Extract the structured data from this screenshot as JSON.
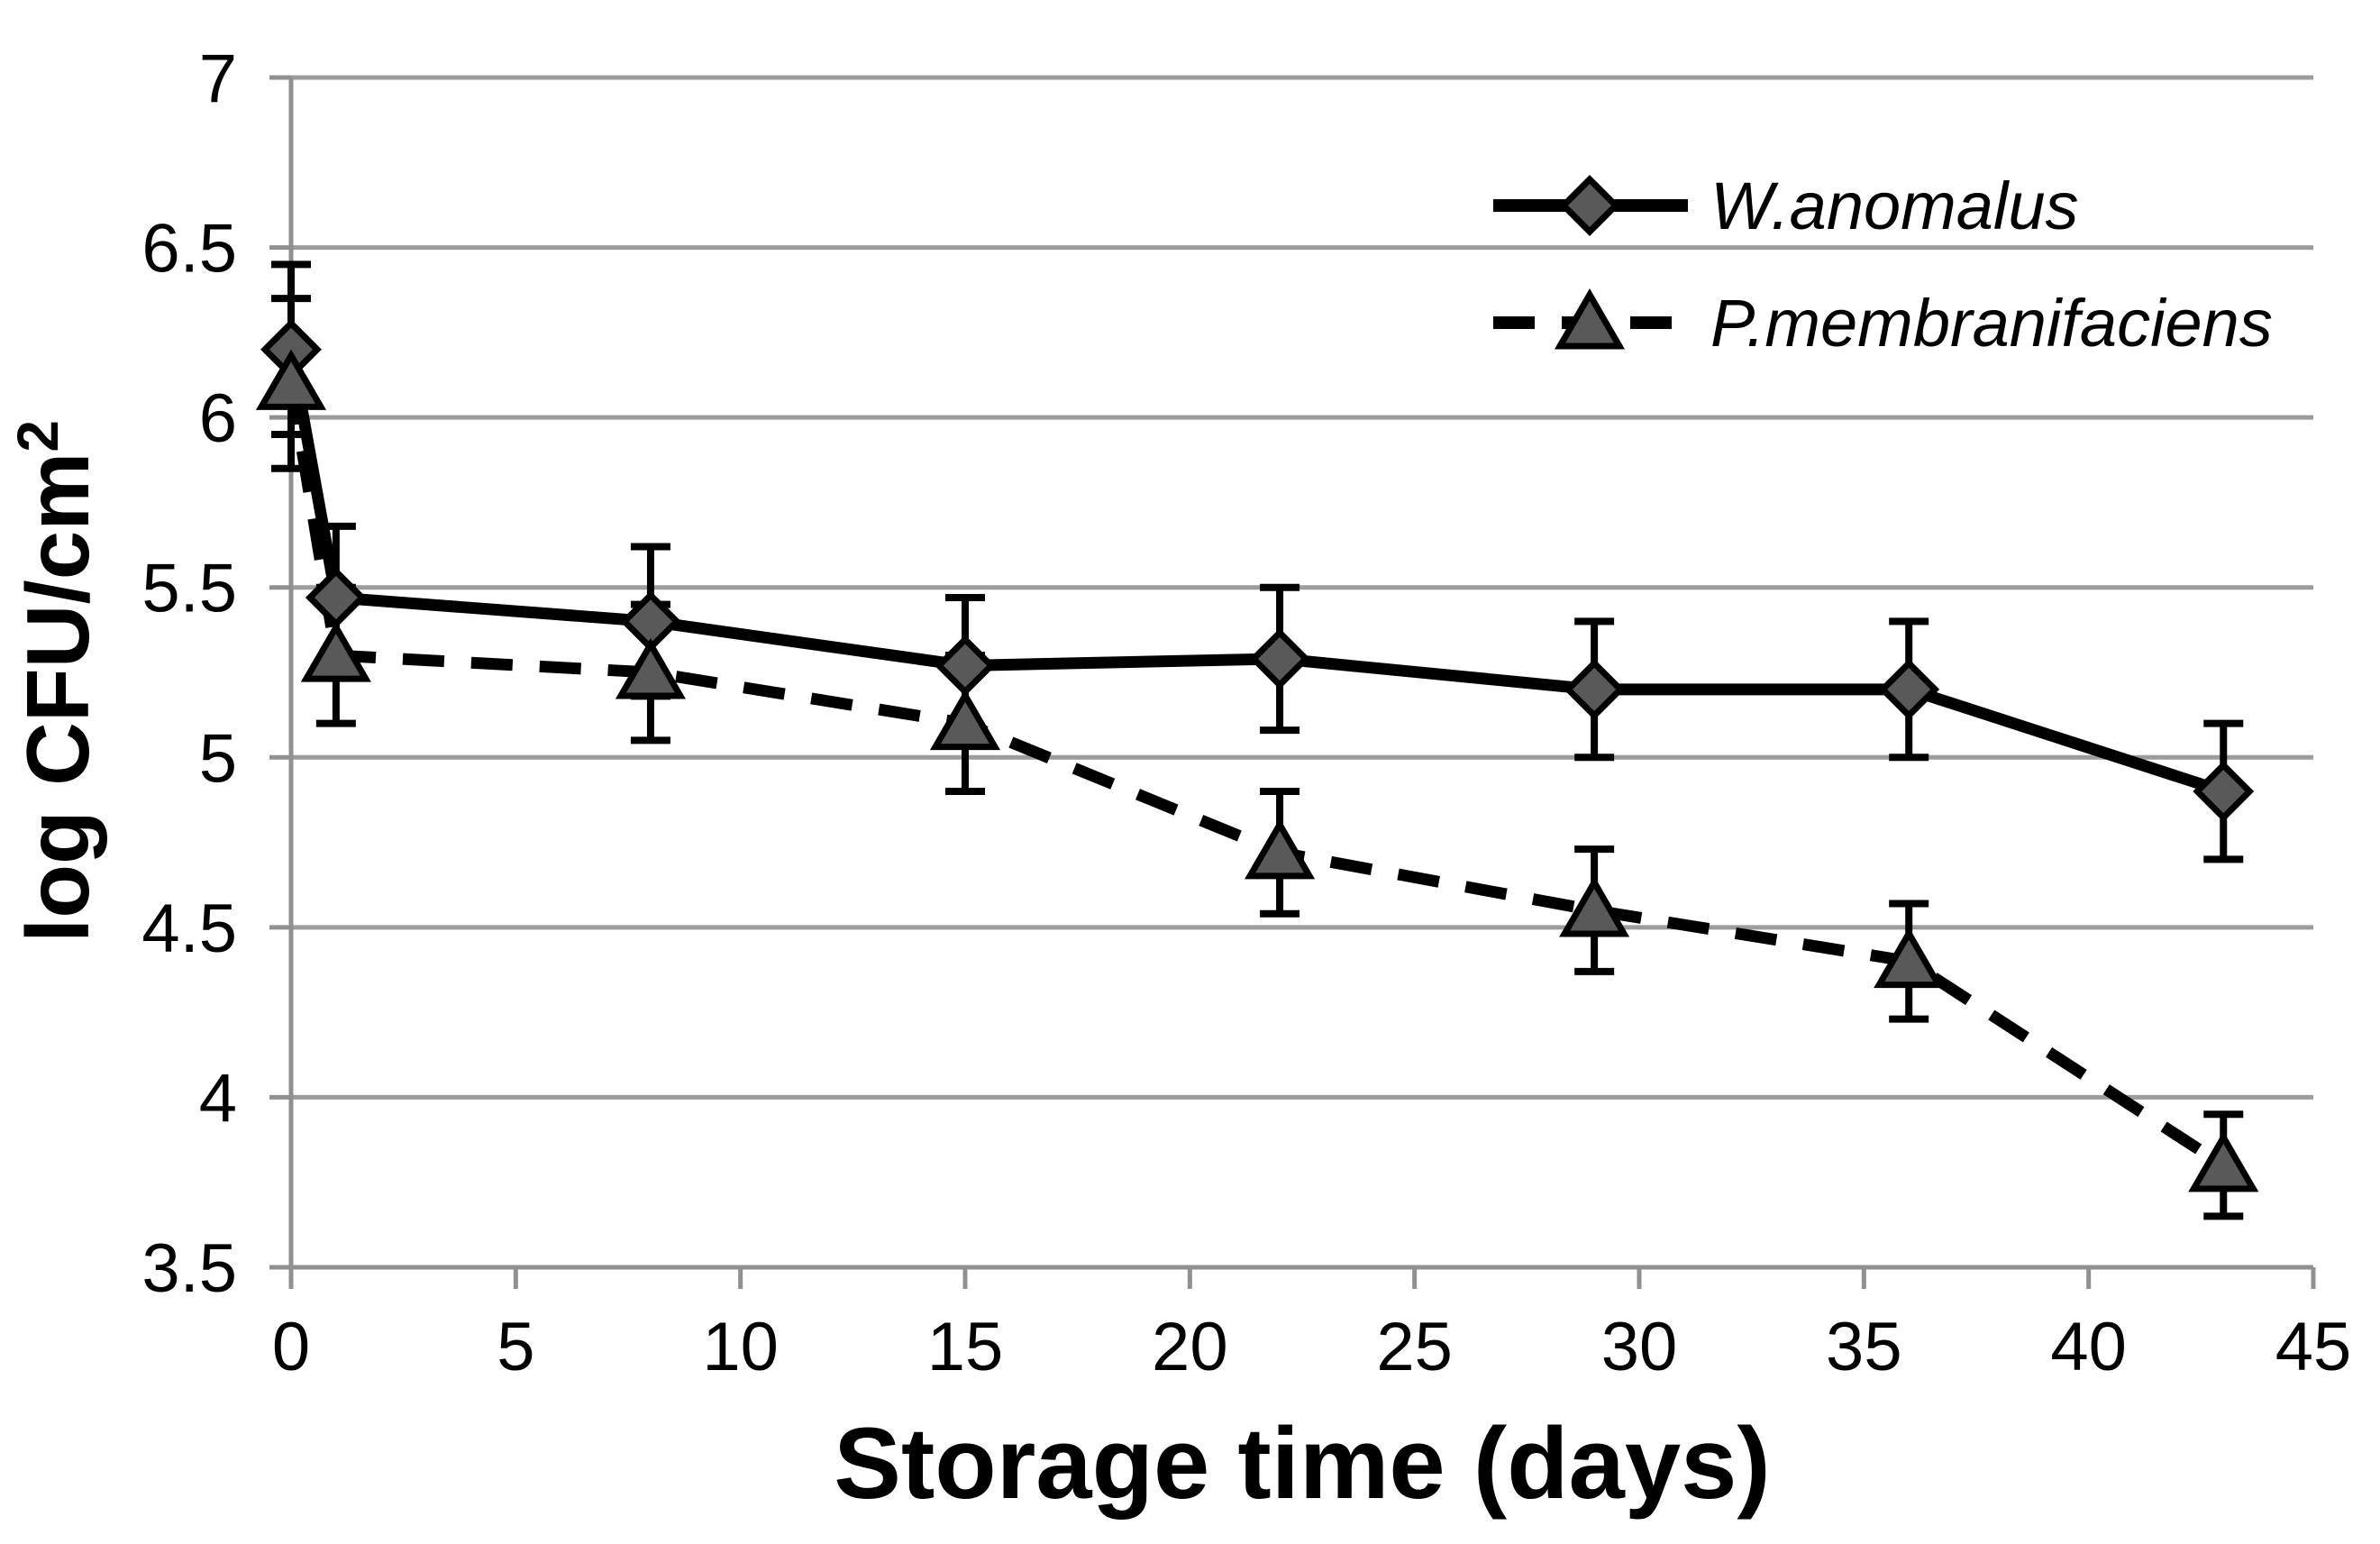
{
  "chart_data": {
    "type": "line",
    "title": "",
    "xlabel": "Storage time (days)",
    "ylabel": "log CFU/cm²",
    "ylabel_base": "log CFU/cm",
    "ylabel_exponent": "2",
    "xlim": [
      0,
      45
    ],
    "ylim": [
      3.5,
      7
    ],
    "x_ticks": [
      0,
      5,
      10,
      15,
      20,
      25,
      30,
      35,
      40,
      45
    ],
    "y_ticks": [
      3.5,
      4,
      4.5,
      5,
      5.5,
      6,
      6.5,
      7
    ],
    "grid": true,
    "legend_position": "top-right",
    "x": [
      0,
      1,
      8,
      15,
      22,
      29,
      36,
      43
    ],
    "series": [
      {
        "name": "W.anomalus",
        "marker": "diamond",
        "line_style": "solid",
        "values": [
          6.2,
          5.47,
          5.4,
          5.27,
          5.29,
          5.2,
          5.2,
          4.9
        ],
        "errors": [
          0.25,
          0.21,
          0.22,
          0.2,
          0.21,
          0.2,
          0.2,
          0.2
        ]
      },
      {
        "name": "P.membranifaciens",
        "marker": "triangle",
        "line_style": "dashed",
        "values": [
          6.1,
          5.3,
          5.25,
          5.1,
          4.72,
          4.55,
          4.4,
          3.8
        ],
        "errors": [
          0.25,
          0.2,
          0.2,
          0.2,
          0.18,
          0.18,
          0.17,
          0.15
        ]
      }
    ]
  },
  "styles": {
    "marker_fill": "#595959",
    "line_color": "#000000",
    "grid_color": "#9c9c9c",
    "axis_color": "#909090",
    "text_color": "#000000",
    "background": "#ffffff"
  }
}
